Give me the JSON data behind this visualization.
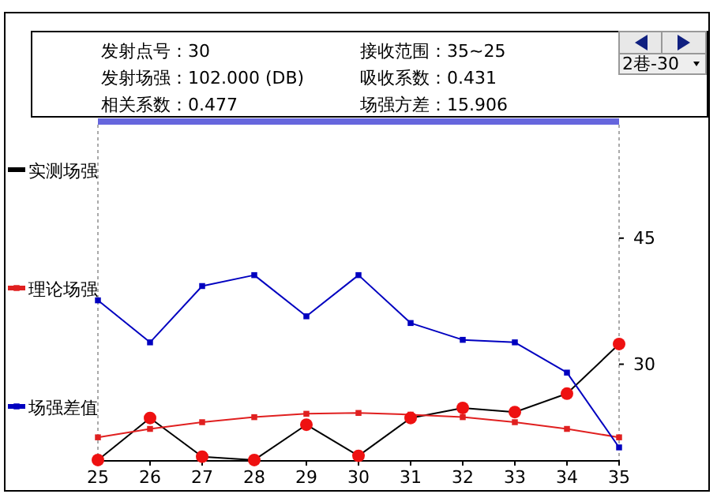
{
  "chart_data": {
    "type": "line",
    "annotations": [
      "发射点号：30",
      "接收范围：35~25",
      "发射场强：102.000 (DB)",
      "吸收系数：0.431",
      "相关系数：0.477",
      "场强方差：15.906",
      "2巷-30"
    ],
    "x": [
      25,
      26,
      27,
      28,
      29,
      30,
      31,
      32,
      33,
      34,
      35
    ],
    "xlim": [
      25,
      35
    ],
    "xticks": [
      25,
      26,
      27,
      28,
      29,
      30,
      31,
      32,
      33,
      34,
      35
    ],
    "ylim": [
      18.5,
      58.5
    ],
    "yticks": [
      30,
      45
    ],
    "legend": "left",
    "marker": "square",
    "grid": false,
    "series": [
      {
        "name": "实测场强",
        "color": "#000000",
        "marker": "none",
        "values": [
          18.6,
          23.6,
          19.0,
          18.6,
          22.8,
          19.1,
          23.6,
          24.8,
          24.3,
          26.5,
          32.4
        ]
      },
      {
        "name": "理论场强",
        "color": "#e02020",
        "values": [
          21.3,
          22.3,
          23.1,
          23.7,
          24.1,
          24.2,
          24.0,
          23.7,
          23.1,
          22.3,
          21.3
        ]
      },
      {
        "name": "场强差值",
        "color": "#0000c0",
        "values": [
          37.6,
          32.6,
          39.3,
          40.6,
          35.7,
          40.6,
          34.9,
          32.9,
          32.6,
          29.0,
          20.1
        ]
      },
      {
        "type": "scatter",
        "color": "#ee1111",
        "marker": "circle",
        "values": [
          18.6,
          23.6,
          19.0,
          18.6,
          22.8,
          19.1,
          23.6,
          24.8,
          24.3,
          26.5,
          32.4
        ]
      }
    ]
  }
}
